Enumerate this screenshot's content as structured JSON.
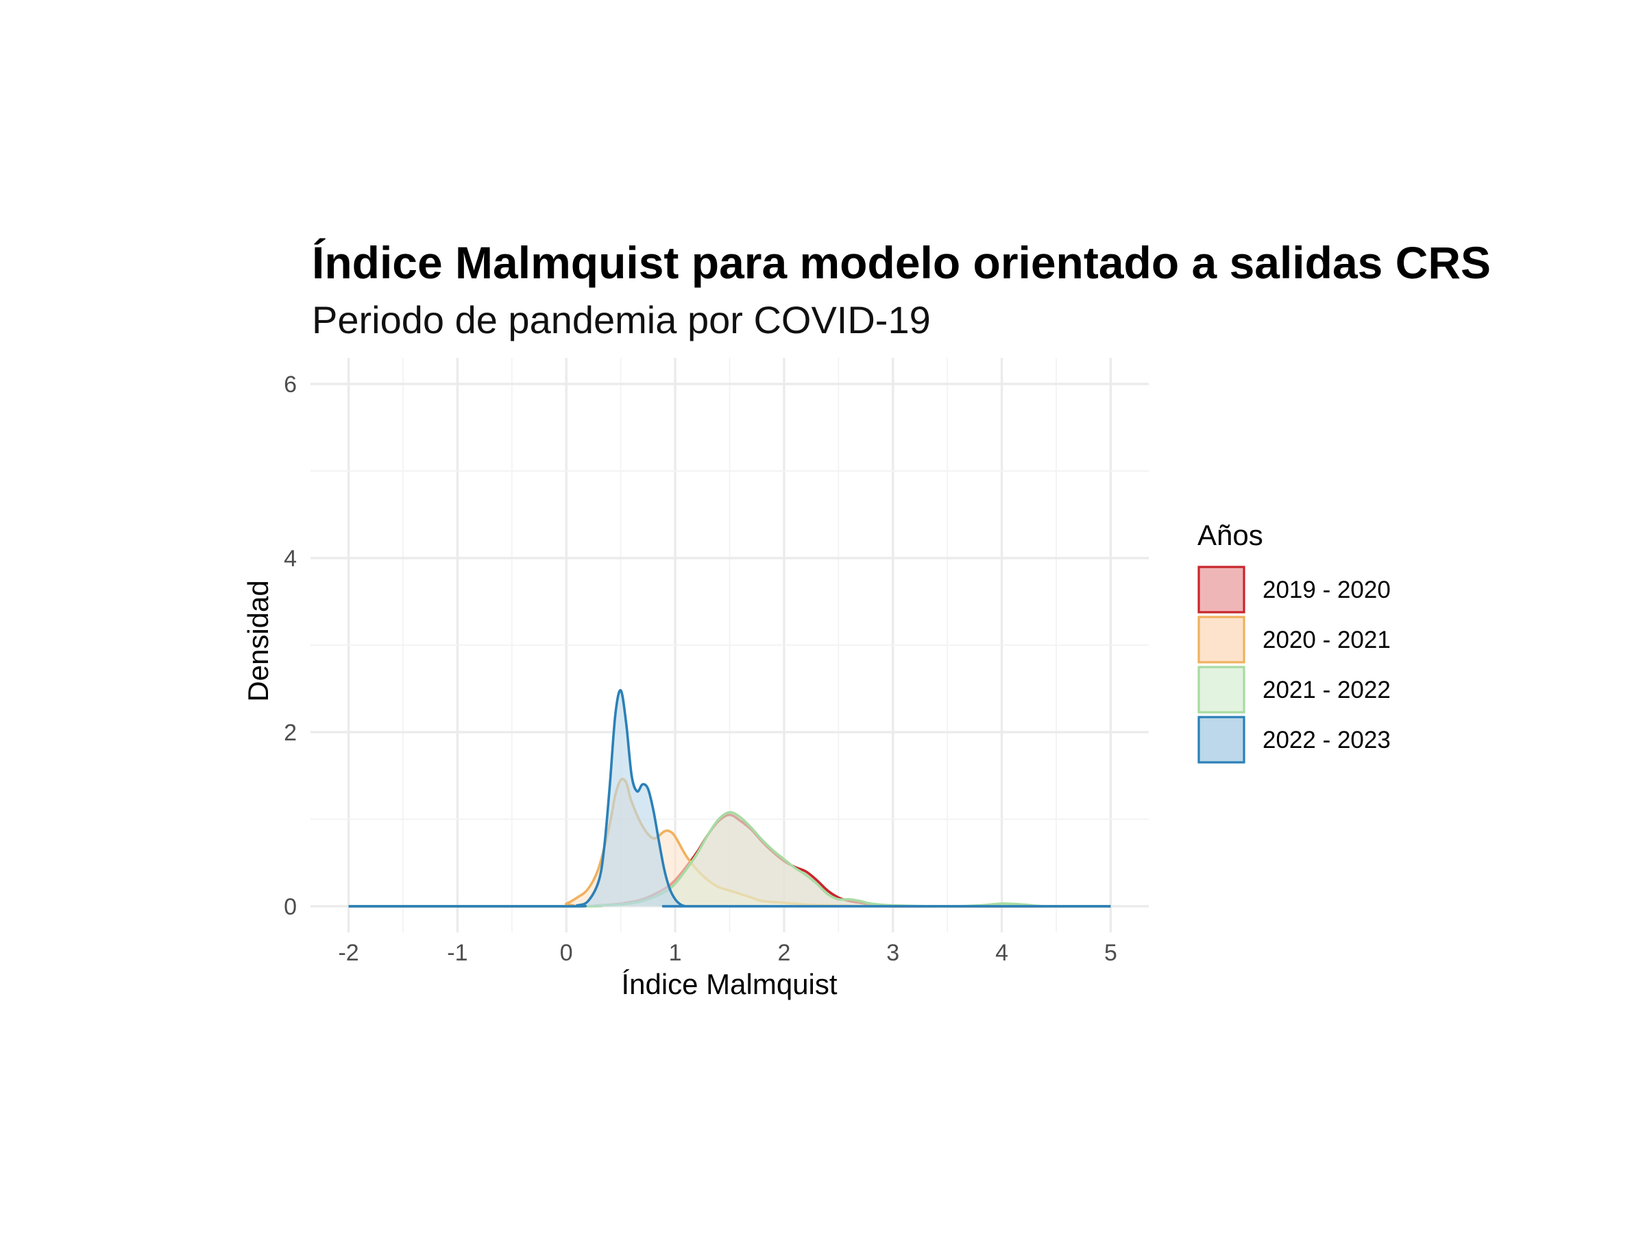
{
  "chart_data": {
    "type": "area",
    "title": "Índice Malmquist para modelo orientado a salidas CRS",
    "subtitle": "Periodo de pandemia por COVID-19",
    "xlabel": "Índice Malmquist",
    "ylabel": "Densidad",
    "xlim": [
      -2.35,
      5.35
    ],
    "ylim": [
      -0.3,
      6.3
    ],
    "x_ticks": [
      -2,
      -1,
      0,
      1,
      2,
      3,
      4,
      5
    ],
    "y_ticks": [
      0,
      2,
      4,
      6
    ],
    "grid": true,
    "legend": {
      "title": "Años",
      "position": "right"
    },
    "series": [
      {
        "name": "2019 - 2020",
        "color": "#c8262c",
        "fill": "#efb6b8",
        "x": [
          -2,
          0,
          0.3,
          0.5,
          0.7,
          0.9,
          1.0,
          1.1,
          1.2,
          1.3,
          1.4,
          1.5,
          1.6,
          1.7,
          1.8,
          1.9,
          2.0,
          2.1,
          2.2,
          2.3,
          2.4,
          2.5,
          2.6,
          2.7,
          2.8,
          3.0,
          3.5,
          4.0,
          5.0
        ],
        "y": [
          0,
          0,
          0.01,
          0.03,
          0.08,
          0.2,
          0.3,
          0.45,
          0.62,
          0.82,
          0.98,
          1.05,
          0.98,
          0.88,
          0.74,
          0.62,
          0.52,
          0.45,
          0.4,
          0.3,
          0.18,
          0.1,
          0.06,
          0.04,
          0.02,
          0.0,
          0,
          0,
          0
        ]
      },
      {
        "name": "2020 - 2021",
        "color": "#f0b15e",
        "fill": "#fde3cc",
        "x": [
          -2,
          -0.1,
          0.0,
          0.1,
          0.2,
          0.3,
          0.4,
          0.45,
          0.5,
          0.55,
          0.6,
          0.7,
          0.8,
          0.9,
          0.95,
          1.0,
          1.1,
          1.2,
          1.3,
          1.4,
          1.5,
          1.6,
          1.7,
          1.8,
          2.0,
          2.2,
          2.5,
          3.0,
          5.0
        ],
        "y": [
          0,
          0,
          0.03,
          0.1,
          0.2,
          0.45,
          0.95,
          1.28,
          1.45,
          1.42,
          1.2,
          0.92,
          0.78,
          0.86,
          0.86,
          0.8,
          0.58,
          0.42,
          0.3,
          0.22,
          0.18,
          0.14,
          0.1,
          0.06,
          0.04,
          0.02,
          0.01,
          0,
          0
        ]
      },
      {
        "name": "2021 - 2022",
        "color": "#a8dba3",
        "fill": "#e2f3e0",
        "x": [
          -2,
          0.1,
          0.3,
          0.5,
          0.7,
          0.9,
          1.0,
          1.1,
          1.2,
          1.3,
          1.4,
          1.5,
          1.6,
          1.7,
          1.8,
          1.9,
          2.0,
          2.1,
          2.2,
          2.3,
          2.4,
          2.5,
          2.6,
          2.7,
          2.8,
          3.0,
          3.5,
          3.8,
          4.0,
          4.2,
          4.4,
          5.0
        ],
        "y": [
          0,
          0,
          0.01,
          0.02,
          0.06,
          0.16,
          0.26,
          0.42,
          0.6,
          0.82,
          1.0,
          1.08,
          1.02,
          0.9,
          0.76,
          0.64,
          0.54,
          0.44,
          0.36,
          0.26,
          0.14,
          0.08,
          0.08,
          0.06,
          0.03,
          0.01,
          0,
          0.01,
          0.03,
          0.02,
          0,
          0
        ]
      },
      {
        "name": "2022 - 2023",
        "color": "#2b80b8",
        "fill": "#bcd8ea",
        "x": [
          -2,
          0.0,
          0.1,
          0.2,
          0.3,
          0.35,
          0.4,
          0.45,
          0.5,
          0.55,
          0.6,
          0.65,
          0.7,
          0.75,
          0.8,
          0.85,
          0.9,
          0.95,
          1.0,
          1.05,
          1.1,
          1.2,
          5.0
        ],
        "y": [
          0,
          0,
          0.01,
          0.06,
          0.3,
          0.7,
          1.4,
          2.2,
          2.48,
          2.1,
          1.5,
          1.32,
          1.4,
          1.35,
          1.1,
          0.75,
          0.42,
          0.2,
          0.08,
          0.02,
          0.0,
          0,
          0
        ]
      }
    ]
  }
}
